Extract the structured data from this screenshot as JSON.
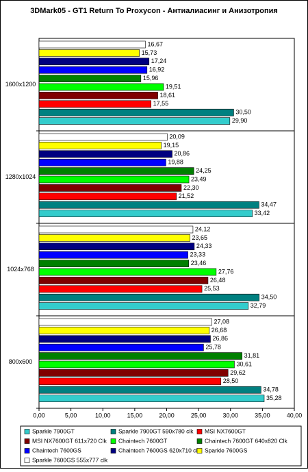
{
  "chart_data": {
    "type": "hbar",
    "title": "3DMark05 - GT1 Return To Proxycon - Антиалиасинг и Анизотропия",
    "categories": [
      "1600x1200",
      "1280x1024",
      "1024x768",
      "800x600"
    ],
    "series": [
      {
        "name": "Sparkle 7900GT",
        "color": "#33cccc",
        "values": [
          29.9,
          33.42,
          32.79,
          35.28
        ],
        "value_labels": [
          "29,90",
          "33,42",
          "32,79",
          "35,28"
        ]
      },
      {
        "name": "Sparkle 7900GT 590x780 clk",
        "color": "#008080",
        "values": [
          30.5,
          34.47,
          34.5,
          34.78
        ],
        "value_labels": [
          "30,50",
          "34,47",
          "34,50",
          "34,78"
        ]
      },
      {
        "name": "MSI NX7600GT",
        "color": "#ff0000",
        "values": [
          17.55,
          21.52,
          25.53,
          28.5
        ],
        "value_labels": [
          "17,55",
          "21,52",
          "25,53",
          "28,50"
        ]
      },
      {
        "name": "MSI NX7600GT 611x720 Clk",
        "color": "#800000",
        "values": [
          18.61,
          22.3,
          26.48,
          29.62
        ],
        "value_labels": [
          "18,61",
          "22,30",
          "26,48",
          "29,62"
        ]
      },
      {
        "name": "Chaintech 7600GT",
        "color": "#00ff00",
        "values": [
          19.51,
          23.49,
          27.76,
          30.61
        ],
        "value_labels": [
          "19,51",
          "23,49",
          "27,76",
          "30,61"
        ]
      },
      {
        "name": "Chaintech 7600GT 640x820 Clk",
        "color": "#008000",
        "values": [
          15.96,
          24.25,
          23.46,
          31.81
        ],
        "value_labels": [
          "15,96",
          "24,25",
          "23,46",
          "31,81"
        ]
      },
      {
        "name": "Chaintech 7600GS",
        "color": "#0000ff",
        "values": [
          16.92,
          19.88,
          23.33,
          25.78
        ],
        "value_labels": [
          "16,92",
          "19,88",
          "23,33",
          "25,78"
        ]
      },
      {
        "name": "Chaintech 7600GS 620x710 clk",
        "color": "#000080",
        "values": [
          17.24,
          20.86,
          24.33,
          26.86
        ],
        "value_labels": [
          "17,24",
          "20,86",
          "24,33",
          "26,86"
        ]
      },
      {
        "name": "Sparkle 7600GS",
        "color": "#ffff00",
        "values": [
          15.73,
          19.15,
          23.65,
          26.68
        ],
        "value_labels": [
          "15,73",
          "19,15",
          "23,65",
          "26,68"
        ]
      },
      {
        "name": "Sparkle 7600GS 555x777 clk",
        "color": "#ffffff",
        "values": [
          16.67,
          20.09,
          24.12,
          27.08
        ],
        "value_labels": [
          "16,67",
          "20,09",
          "24,12",
          "27,08"
        ]
      }
    ],
    "xlim": [
      0,
      40
    ],
    "xticks": [
      {
        "value": 0,
        "label": "0,00"
      },
      {
        "value": 5,
        "label": "5,00"
      },
      {
        "value": 10,
        "label": "10,00"
      },
      {
        "value": 15,
        "label": "15,00"
      },
      {
        "value": 20,
        "label": "20,00"
      },
      {
        "value": 25,
        "label": "25,00"
      },
      {
        "value": 30,
        "label": "30,00"
      },
      {
        "value": 35,
        "label": "35,00"
      },
      {
        "value": 40,
        "label": "40,00"
      }
    ]
  }
}
